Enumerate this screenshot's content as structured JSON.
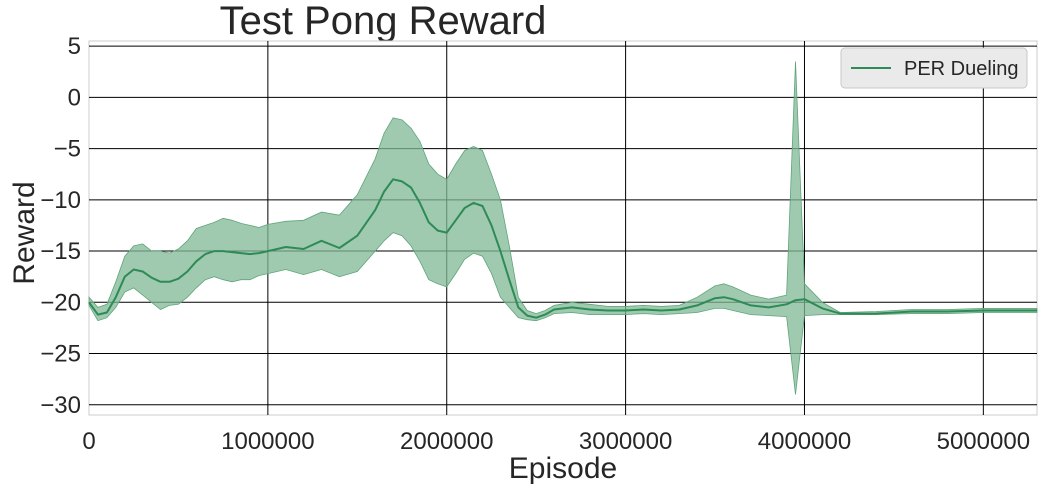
{
  "chart_data": {
    "type": "line",
    "title": "Test Pong Reward",
    "xlabel": "Episode",
    "ylabel": "Reward",
    "xlim": [
      0,
      5300000
    ],
    "ylim": [
      -31,
      5.5
    ],
    "xticks": [
      0,
      1000000,
      2000000,
      3000000,
      4000000,
      5000000
    ],
    "xtick_labels": [
      "0",
      "1000000",
      "2000000",
      "3000000",
      "4000000",
      "5000000"
    ],
    "yticks": [
      5,
      0,
      -5,
      -10,
      -15,
      -20,
      -25,
      -30
    ],
    "ytick_labels": [
      "5",
      "0",
      "−5",
      "−10",
      "−15",
      "−20",
      "−25",
      "−30"
    ],
    "grid": true,
    "legend_position": "top-right",
    "colors": {
      "line": "#2e8b57",
      "band": "#7fb894",
      "band_edge": "#5fa57a",
      "grid": "#000000"
    },
    "series": [
      {
        "name": "PER Dueling",
        "x": [
          0,
          50000,
          100000,
          150000,
          200000,
          250000,
          300000,
          350000,
          400000,
          450000,
          500000,
          550000,
          600000,
          650000,
          700000,
          750000,
          800000,
          850000,
          900000,
          950000,
          1000000,
          1100000,
          1200000,
          1300000,
          1400000,
          1500000,
          1600000,
          1650000,
          1700000,
          1750000,
          1800000,
          1850000,
          1900000,
          1950000,
          2000000,
          2050000,
          2100000,
          2150000,
          2200000,
          2250000,
          2300000,
          2350000,
          2400000,
          2450000,
          2500000,
          2550000,
          2600000,
          2700000,
          2800000,
          2900000,
          3000000,
          3100000,
          3200000,
          3300000,
          3400000,
          3500000,
          3550000,
          3600000,
          3700000,
          3800000,
          3900000,
          3950000,
          4000000,
          4100000,
          4200000,
          4400000,
          4600000,
          4800000,
          5000000,
          5200000,
          5300000
        ],
        "values": [
          -20,
          -21.2,
          -21,
          -19.5,
          -17.5,
          -16.8,
          -17,
          -17.6,
          -18,
          -18,
          -17.7,
          -17,
          -16,
          -15.3,
          -15,
          -15,
          -15.1,
          -15.2,
          -15.3,
          -15.2,
          -15,
          -14.6,
          -14.8,
          -14,
          -14.7,
          -13.5,
          -11,
          -9.2,
          -8,
          -8.2,
          -8.8,
          -10.3,
          -12.2,
          -13,
          -13.2,
          -12,
          -10.8,
          -10.3,
          -10.6,
          -12.5,
          -15,
          -17.8,
          -20.5,
          -21.3,
          -21.5,
          -21.2,
          -20.7,
          -20.5,
          -20.7,
          -20.8,
          -20.8,
          -20.7,
          -20.8,
          -20.7,
          -20.3,
          -19.6,
          -19.5,
          -19.7,
          -20.3,
          -20.5,
          -20.2,
          -19.8,
          -19.7,
          -20.6,
          -21.1,
          -21.1,
          -20.9,
          -20.9,
          -20.8,
          -20.8,
          -20.8
        ],
        "lower": [
          -20.3,
          -21.8,
          -21.5,
          -20.5,
          -19,
          -18.6,
          -19.3,
          -20,
          -20.7,
          -20.3,
          -20.2,
          -19.5,
          -18.6,
          -17.8,
          -17.5,
          -17.8,
          -18,
          -17.8,
          -17.8,
          -17.4,
          -17.2,
          -16.8,
          -17.3,
          -16.8,
          -17.5,
          -17,
          -15,
          -14,
          -13.2,
          -13.5,
          -14.5,
          -16,
          -17.8,
          -18.2,
          -18.5,
          -17.2,
          -15.8,
          -15.2,
          -15.5,
          -17.2,
          -19.5,
          -20.5,
          -21.5,
          -21.7,
          -21.8,
          -21.5,
          -21.1,
          -21,
          -21.2,
          -21.2,
          -21.2,
          -21.1,
          -21.2,
          -21.1,
          -21,
          -20.6,
          -20.6,
          -20.8,
          -21.2,
          -21.3,
          -21.4,
          -29,
          -21.3,
          -21.2,
          -21.2,
          -21.2,
          -21.1,
          -21.1,
          -21,
          -21,
          -21
        ],
        "upper": [
          -19.5,
          -20.5,
          -20.2,
          -18,
          -15.5,
          -14.5,
          -14.3,
          -15,
          -15,
          -15.2,
          -14.8,
          -14,
          -12.8,
          -12.5,
          -12.2,
          -11.8,
          -12,
          -12.3,
          -12.5,
          -12.7,
          -12.4,
          -12.1,
          -12,
          -11.2,
          -11.5,
          -9.5,
          -6,
          -3.5,
          -2,
          -2.2,
          -3,
          -4.3,
          -6.5,
          -7.5,
          -8,
          -6.5,
          -5.2,
          -4.8,
          -5.2,
          -7.5,
          -10,
          -14.5,
          -19.5,
          -20.8,
          -21.1,
          -20.8,
          -20.3,
          -20,
          -20.2,
          -20.4,
          -20.4,
          -20.3,
          -20.4,
          -20.3,
          -19.5,
          -18.4,
          -18.2,
          -18.5,
          -19.3,
          -19.7,
          -19.3,
          3.5,
          -18.2,
          -20,
          -21,
          -20.9,
          -20.7,
          -20.7,
          -20.6,
          -20.6,
          -20.6
        ]
      }
    ]
  }
}
